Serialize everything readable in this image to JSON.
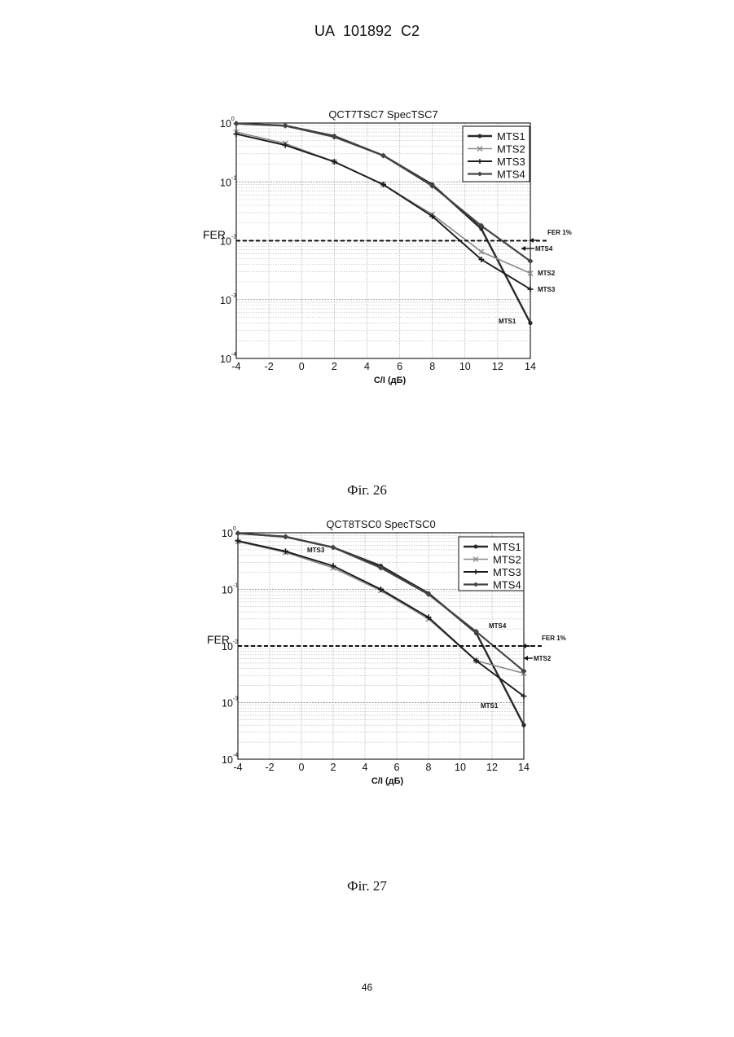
{
  "page": {
    "header": "UA 101892 C2",
    "page_number": "46",
    "figures": [
      {
        "caption": "Фіг. 26"
      },
      {
        "caption": "Фіг. 27"
      }
    ]
  },
  "chart_data": [
    {
      "type": "line",
      "title": "QCT7TSC7 SpecTSC7",
      "xlabel": "C/I (дБ)",
      "ylabel": "FER",
      "xlim": [
        -4,
        14
      ],
      "ylim": [
        0.0001,
        1
      ],
      "yscale": "log",
      "grid": true,
      "legend_position": "top-right",
      "x_ticks": [
        "-4",
        "-2",
        "0",
        "2",
        "4",
        "6",
        "8",
        "10",
        "12",
        "14"
      ],
      "y_ticks": [
        {
          "base": "10",
          "exp": "0"
        },
        {
          "base": "10",
          "exp": "-1"
        },
        {
          "base": "10",
          "exp": "-2"
        },
        {
          "base": "10",
          "exp": "-3"
        },
        {
          "base": "10",
          "exp": "-4"
        }
      ],
      "x": [
        -4,
        -1,
        2,
        5,
        8,
        11,
        14
      ],
      "series": [
        {
          "name": "MTS1",
          "values": [
            0.98,
            0.9,
            0.6,
            0.28,
            0.09,
            0.016,
            0.0004
          ]
        },
        {
          "name": "MTS2",
          "values": [
            0.7,
            0.45,
            0.22,
            0.09,
            0.028,
            0.0065,
            0.0028
          ]
        },
        {
          "name": "MTS3",
          "values": [
            0.65,
            0.42,
            0.22,
            0.09,
            0.026,
            0.0048,
            0.0015
          ]
        },
        {
          "name": "MTS4",
          "values": [
            0.98,
            0.9,
            0.58,
            0.28,
            0.085,
            0.018,
            0.0045
          ]
        }
      ],
      "reference_line": {
        "y": 0.01,
        "label": "FER 1%"
      },
      "annotations": [
        "FER",
        "MTS4",
        "MTS2",
        "MTS3",
        "MTS1"
      ]
    },
    {
      "type": "line",
      "title": "QCT8TSC0 SpecTSC0",
      "xlabel": "C/I (дБ)",
      "ylabel": "FER",
      "xlim": [
        -4,
        14
      ],
      "ylim": [
        0.0001,
        1
      ],
      "yscale": "log",
      "grid": true,
      "legend_position": "top-right",
      "x_ticks": [
        "-4",
        "-2",
        "0",
        "2",
        "4",
        "6",
        "8",
        "10",
        "12",
        "14"
      ],
      "y_ticks": [
        {
          "base": "10",
          "exp": "0"
        },
        {
          "base": "10",
          "exp": "-1"
        },
        {
          "base": "10",
          "exp": "-2"
        },
        {
          "base": "10",
          "exp": "-3"
        },
        {
          "base": "10",
          "exp": "-4"
        }
      ],
      "x": [
        -4,
        -1,
        2,
        5,
        8,
        11,
        14
      ],
      "series": [
        {
          "name": "MTS1",
          "values": [
            0.98,
            0.85,
            0.55,
            0.26,
            0.085,
            0.017,
            0.0004
          ]
        },
        {
          "name": "MTS2",
          "values": [
            0.7,
            0.45,
            0.24,
            0.095,
            0.03,
            0.0055,
            0.0033
          ]
        },
        {
          "name": "MTS3",
          "values": [
            0.72,
            0.47,
            0.26,
            0.1,
            0.032,
            0.0055,
            0.0013
          ]
        },
        {
          "name": "MTS4",
          "values": [
            0.98,
            0.85,
            0.55,
            0.24,
            0.082,
            0.018,
            0.0036
          ]
        }
      ],
      "reference_line": {
        "y": 0.01,
        "label": "FER 1%"
      },
      "annotations": [
        "FER",
        "MTS3",
        "MTS4",
        "MTS2",
        "MTS1"
      ]
    }
  ]
}
